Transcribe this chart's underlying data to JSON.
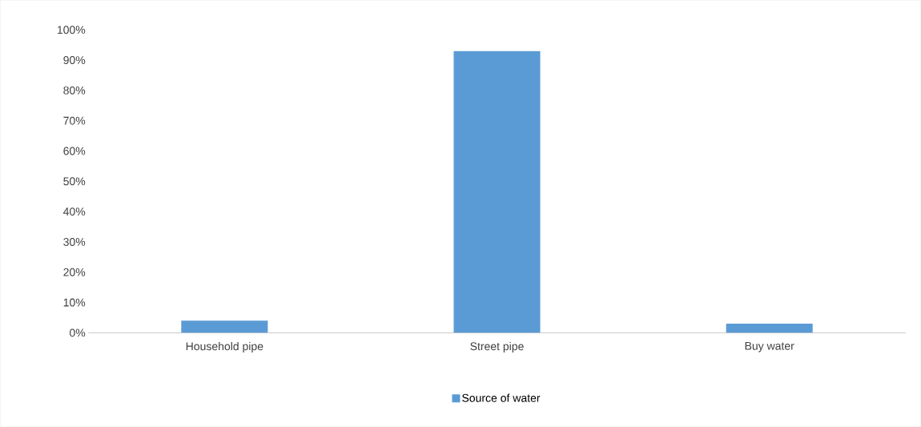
{
  "chart_data": {
    "type": "bar",
    "categories": [
      "Household pipe",
      "Street pipe",
      "Buy water"
    ],
    "series": [
      {
        "name": "Source of water",
        "color": "#5b9bd5",
        "values": [
          4,
          93,
          3
        ]
      }
    ],
    "ylim": [
      0,
      100
    ],
    "yticks": [
      {
        "value": 0,
        "label": "0%"
      },
      {
        "value": 10,
        "label": "10%"
      },
      {
        "value": 20,
        "label": "20%"
      },
      {
        "value": 30,
        "label": "30%"
      },
      {
        "value": 40,
        "label": "40%"
      },
      {
        "value": 50,
        "label": "50%"
      },
      {
        "value": 60,
        "label": "60%"
      },
      {
        "value": 70,
        "label": "70%"
      },
      {
        "value": 80,
        "label": "80%"
      },
      {
        "value": 90,
        "label": "90%"
      },
      {
        "value": 100,
        "label": "100%"
      }
    ],
    "legend": "bottom"
  }
}
